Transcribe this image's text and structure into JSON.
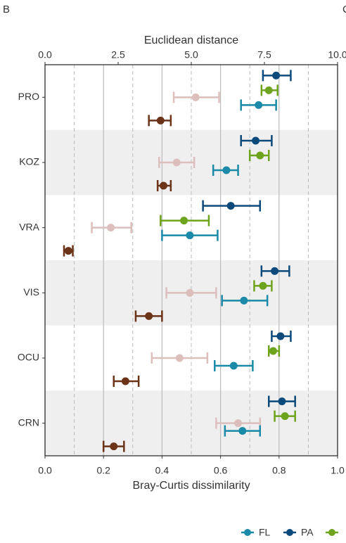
{
  "chart_data": {
    "type": "dot-whisker",
    "panel_labels": [
      "B",
      "C"
    ],
    "x_top_label": "Euclidean distance",
    "xlabel": "Bray-Curtis dissimilarity",
    "categories": [
      "PRO",
      "KOZ",
      "VRA",
      "VIS",
      "OCU",
      "CRN"
    ],
    "xlim": [
      0,
      1
    ],
    "xticks": [
      {
        "value": 0,
        "label": "0.0"
      },
      {
        "value": 0.2,
        "label": "0.2"
      },
      {
        "value": 0.4,
        "label": "0.4"
      },
      {
        "value": 0.6,
        "label": "0.6"
      },
      {
        "value": 0.8,
        "label": "0.8"
      },
      {
        "value": 1,
        "label": "1.0"
      }
    ],
    "xminor": [
      0.1,
      0.3,
      0.5,
      0.7,
      0.9
    ],
    "x2lim": [
      0,
      10
    ],
    "x2ticks": [
      {
        "value": 0,
        "label": "0.0"
      },
      2.5,
      {
        "value": 5,
        "label": "5.0"
      },
      {
        "value": 7.5,
        "label": "7.5"
      },
      {
        "value": 10,
        "label": "10.0"
      }
    ],
    "grid": true,
    "series": [
      {
        "name": "FL",
        "color": "#1b8aa8",
        "legend": true,
        "values": [
          0.73,
          0.62,
          0.495,
          0.68,
          0.645,
          0.675
        ],
        "low": [
          0.67,
          0.575,
          0.4,
          0.605,
          0.58,
          0.615
        ],
        "high": [
          0.79,
          0.66,
          0.59,
          0.76,
          0.71,
          0.735
        ]
      },
      {
        "name": "PA",
        "color": "#0c4a7c",
        "legend": true,
        "values": [
          0.79,
          0.72,
          0.635,
          0.785,
          0.805,
          0.81
        ],
        "low": [
          0.745,
          0.67,
          0.54,
          0.74,
          0.775,
          0.765
        ],
        "high": [
          0.84,
          0.775,
          0.735,
          0.835,
          0.84,
          0.855
        ]
      },
      {
        "color": "#6ea31d",
        "legend": true,
        "values": [
          0.765,
          0.735,
          0.475,
          0.745,
          0.78,
          0.82
        ],
        "low": [
          0.74,
          0.7,
          0.395,
          0.715,
          0.765,
          0.785
        ],
        "high": [
          0.795,
          0.765,
          0.56,
          0.775,
          0.8,
          0.855
        ]
      },
      {
        "color": "#dcbfbc",
        "values": [
          0.515,
          0.45,
          0.225,
          0.495,
          0.46,
          0.66
        ],
        "low": [
          0.44,
          0.39,
          0.16,
          0.415,
          0.365,
          0.585
        ],
        "high": [
          0.595,
          0.51,
          0.295,
          0.585,
          0.555,
          0.735
        ]
      },
      {
        "color": "#6b3318",
        "values": [
          0.395,
          0.405,
          0.08,
          0.355,
          0.275,
          0.235
        ],
        "low": [
          0.355,
          0.385,
          0.065,
          0.31,
          0.235,
          0.2
        ],
        "high": [
          0.43,
          0.43,
          0.095,
          0.4,
          0.32,
          0.27
        ]
      }
    ]
  }
}
